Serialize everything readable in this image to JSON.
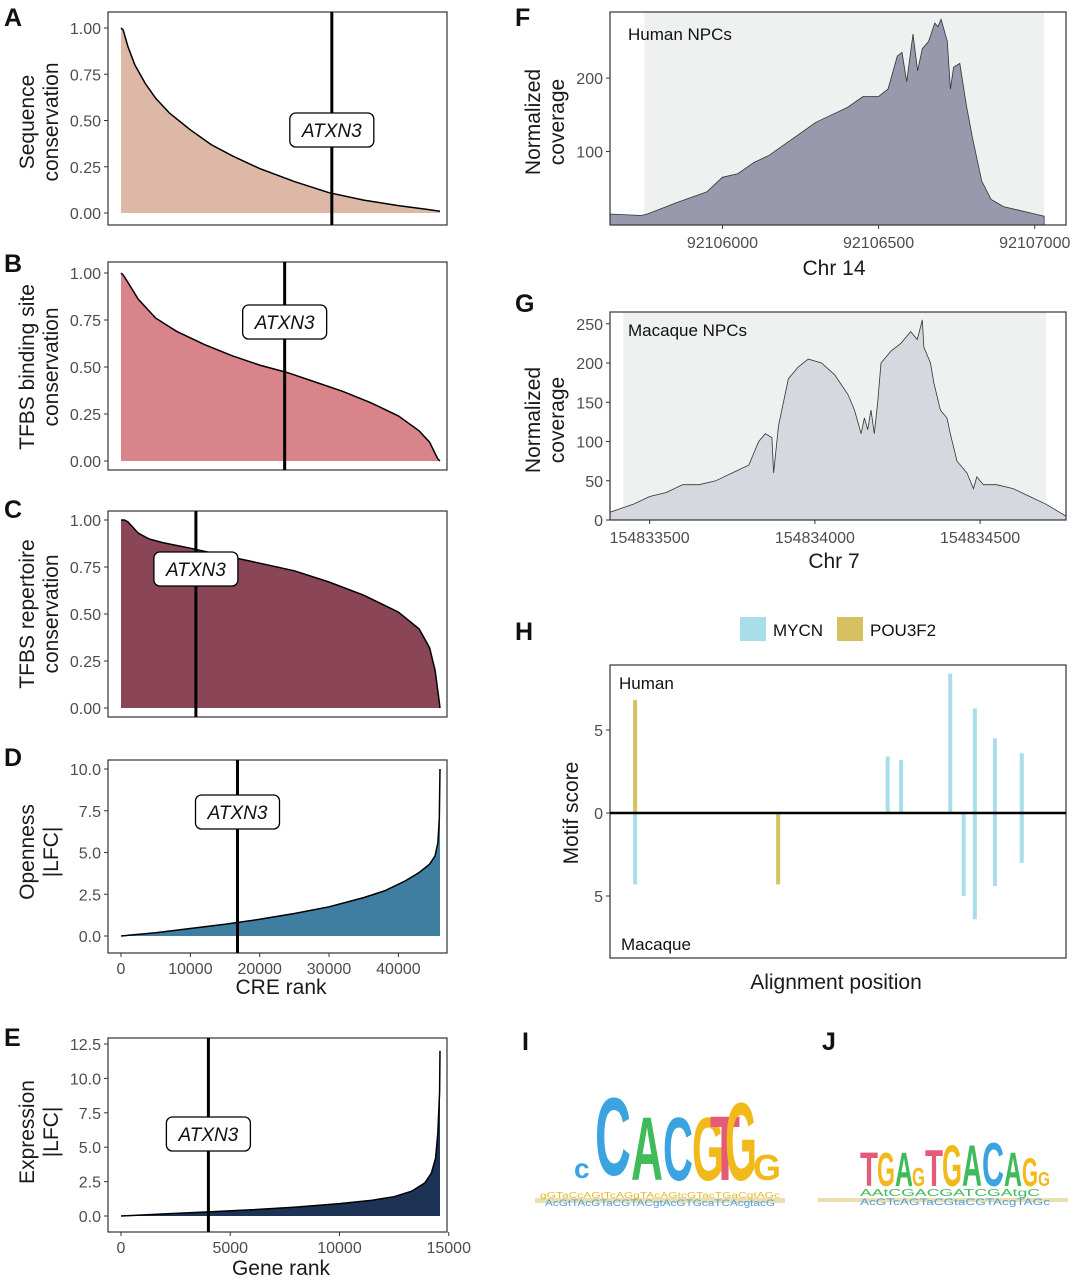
{
  "panels": {
    "A": {
      "letter": "A",
      "ylabel": [
        "Sequence",
        "conservation"
      ],
      "yticks": [
        "0.00",
        "0.25",
        "0.50",
        "0.75",
        "1.00"
      ],
      "annotation": "ATXN3",
      "fill": "#deb8a6",
      "chart_type": "area",
      "ylim": [
        0,
        1
      ],
      "xlim": [
        0,
        46000
      ],
      "marker_x": 30400,
      "curve_x": [
        0,
        300,
        1000,
        2000,
        3500,
        5000,
        7000,
        10000,
        13000,
        16000,
        20000,
        25000,
        30000,
        35000,
        40000,
        44000,
        45500,
        46000
      ],
      "curve_y": [
        1.0,
        0.99,
        0.9,
        0.8,
        0.7,
        0.62,
        0.54,
        0.45,
        0.37,
        0.31,
        0.24,
        0.17,
        0.11,
        0.07,
        0.04,
        0.02,
        0.012,
        0.01
      ]
    },
    "B": {
      "letter": "B",
      "ylabel": [
        "TFBS binding site",
        "conservation"
      ],
      "yticks": [
        "0.00",
        "0.25",
        "0.50",
        "0.75",
        "1.00"
      ],
      "annotation": "ATXN3",
      "fill": "#d9838b",
      "chart_type": "area",
      "ylim": [
        0,
        1
      ],
      "xlim": [
        0,
        46000
      ],
      "marker_x": 23600,
      "curve_x": [
        0,
        300,
        1000,
        2500,
        5000,
        8000,
        12000,
        16000,
        20000,
        24000,
        28000,
        32000,
        36000,
        40000,
        43000,
        44500,
        45300,
        45700,
        46000
      ],
      "curve_y": [
        1.0,
        0.99,
        0.95,
        0.86,
        0.76,
        0.69,
        0.62,
        0.56,
        0.51,
        0.47,
        0.42,
        0.37,
        0.31,
        0.24,
        0.16,
        0.1,
        0.04,
        0.01,
        0.0
      ]
    },
    "C": {
      "letter": "C",
      "ylabel": [
        "TFBS repertoire",
        "conservation"
      ],
      "yticks": [
        "0.00",
        "0.25",
        "0.50",
        "0.75",
        "1.00"
      ],
      "annotation": "ATXN3",
      "fill": "#8a4656",
      "chart_type": "area",
      "ylim": [
        0,
        1
      ],
      "xlim": [
        0,
        46000
      ],
      "marker_x": 10800,
      "curve_x": [
        0,
        500,
        1000,
        1500,
        2500,
        4000,
        6000,
        10000,
        15000,
        20000,
        25000,
        30000,
        35000,
        40000,
        43000,
        44500,
        45300,
        45800,
        46000
      ],
      "curve_y": [
        1.0,
        1.0,
        0.99,
        0.97,
        0.93,
        0.9,
        0.88,
        0.85,
        0.81,
        0.77,
        0.73,
        0.67,
        0.6,
        0.51,
        0.42,
        0.32,
        0.2,
        0.06,
        0.0
      ]
    },
    "D": {
      "letter": "D",
      "ylabel": [
        "Openness",
        "|LFC|"
      ],
      "yticks": [
        "0.0",
        "2.5",
        "5.0",
        "7.5",
        "10.0"
      ],
      "xticks": [
        "0",
        "10000",
        "20000",
        "30000",
        "40000"
      ],
      "xlabel": "CRE rank",
      "annotation": "ATXN3",
      "fill": "#3f7ea1",
      "chart_type": "area",
      "ylim": [
        0,
        10
      ],
      "xlim": [
        0,
        46000
      ],
      "marker_x": 16800,
      "curve_x": [
        0,
        5000,
        10000,
        15000,
        20000,
        25000,
        30000,
        35000,
        38000,
        41000,
        43000,
        44500,
        45300,
        45700,
        45900,
        46000
      ],
      "curve_y": [
        0.0,
        0.2,
        0.45,
        0.7,
        1.0,
        1.35,
        1.75,
        2.3,
        2.7,
        3.3,
        3.8,
        4.3,
        4.8,
        5.6,
        7.0,
        10.0
      ]
    },
    "E": {
      "letter": "E",
      "ylabel": [
        "Expression",
        "|LFC|"
      ],
      "yticks": [
        "0.0",
        "2.5",
        "5.0",
        "7.5",
        "10.0",
        "12.5"
      ],
      "xticks": [
        "0",
        "5000",
        "10000",
        "15000"
      ],
      "xlabel": "Gene rank",
      "annotation": "ATXN3",
      "fill": "#1d3355",
      "chart_type": "area",
      "ylim": [
        0,
        12.5
      ],
      "xlim": [
        0,
        14600
      ],
      "marker_x": 4000,
      "curve_x": [
        0,
        2000,
        4000,
        6000,
        8000,
        10000,
        11500,
        12500,
        13300,
        13900,
        14200,
        14400,
        14500,
        14580,
        14600
      ],
      "curve_y": [
        0.0,
        0.15,
        0.3,
        0.45,
        0.65,
        0.9,
        1.15,
        1.4,
        1.8,
        2.4,
        3.1,
        4.2,
        6.0,
        9.0,
        12.0
      ]
    },
    "F": {
      "letter": "F",
      "ylabel": [
        "Normalized",
        "coverage"
      ],
      "yticks": [
        "100",
        "200"
      ],
      "xticks": [
        "92106000",
        "92106500",
        "92107000"
      ],
      "xlabel": "Chr 14",
      "inner_label": "Human NPCs",
      "fill": "#9899ad",
      "chart_type": "area",
      "xlim": [
        92105640,
        92107100
      ],
      "ylim": [
        0,
        290
      ],
      "shade_range": [
        92105750,
        92107030
      ],
      "x": [
        92105640,
        92105740,
        92105760,
        92105850,
        92105950,
        92106000,
        92106050,
        92106100,
        92106150,
        92106200,
        92106250,
        92106300,
        92106350,
        92106400,
        92106450,
        92106500,
        92106530,
        92106560,
        92106575,
        92106590,
        92106610,
        92106625,
        92106640,
        92106660,
        92106680,
        92106690,
        92106700,
        92106710,
        92106720,
        92106730,
        92106740,
        92106760,
        92106780,
        92106800,
        92106830,
        92106860,
        92106900,
        92106950,
        92107000,
        92107030
      ],
      "y": [
        15,
        13,
        15,
        30,
        45,
        65,
        70,
        85,
        95,
        110,
        125,
        140,
        150,
        160,
        175,
        175,
        185,
        230,
        235,
        195,
        260,
        210,
        240,
        250,
        275,
        270,
        280,
        265,
        250,
        185,
        215,
        220,
        165,
        120,
        60,
        35,
        25,
        20,
        15,
        12
      ]
    },
    "G": {
      "letter": "G",
      "ylabel": [
        "Normalized",
        "coverage"
      ],
      "yticks": [
        "0",
        "50",
        "100",
        "150",
        "200",
        "250"
      ],
      "xticks": [
        "154833500",
        "154834000",
        "154834500"
      ],
      "xlabel": "Chr 7",
      "inner_label": "Macaque NPCs",
      "fill": "#d6d8e0",
      "chart_type": "area",
      "xlim": [
        154833380,
        154834760
      ],
      "ylim": [
        0,
        265
      ],
      "shade_range": [
        154833420,
        154834700
      ],
      "x": [
        154833380,
        154833450,
        154833500,
        154833550,
        154833600,
        154833650,
        154833700,
        154833750,
        154833800,
        154833830,
        154833850,
        154833870,
        154833875,
        154833890,
        154833900,
        154833920,
        154833950,
        154833980,
        154834020,
        154834060,
        154834100,
        154834120,
        154834140,
        154834150,
        154834160,
        154834170,
        154834180,
        154834190,
        154834200,
        154834230,
        154834260,
        154834290,
        154834310,
        154834325,
        154834330,
        154834350,
        154834360,
        154834380,
        154834400,
        154834410,
        154834430,
        154834460,
        154834480,
        154834490,
        154834510,
        154834550,
        154834600,
        154834650,
        154834700,
        154834740,
        154834760
      ],
      "y": [
        10,
        20,
        30,
        35,
        45,
        45,
        50,
        60,
        70,
        100,
        110,
        105,
        60,
        120,
        140,
        180,
        195,
        205,
        200,
        185,
        160,
        140,
        110,
        130,
        115,
        140,
        110,
        150,
        200,
        215,
        225,
        240,
        230,
        255,
        220,
        200,
        175,
        140,
        130,
        110,
        75,
        60,
        40,
        55,
        45,
        45,
        40,
        30,
        20,
        10,
        5
      ]
    },
    "H": {
      "letter": "H",
      "ylabel": "Motif score",
      "yticks": [
        "5",
        "0",
        "5"
      ],
      "xlabel": "Alignment position",
      "top_label": "Human",
      "bottom_label": "Macaque",
      "legend": [
        {
          "name": "MYCN",
          "color": "#a8dde9"
        },
        {
          "name": "POU3F2",
          "color": "#d6c060"
        }
      ],
      "chart_type": "bar",
      "ylim": [
        -7.5,
        8.5
      ],
      "xlim": [
        0,
        100
      ],
      "bars": [
        {
          "x": 4.5,
          "v": 6.8,
          "c": 1
        },
        {
          "x": 4.5,
          "v": -4.3,
          "c": 0
        },
        {
          "x": 36.5,
          "v": -4.3,
          "c": 1
        },
        {
          "x": 61,
          "v": 3.4,
          "c": 0
        },
        {
          "x": 64,
          "v": 3.2,
          "c": 0
        },
        {
          "x": 75,
          "v": 8.4,
          "c": 0
        },
        {
          "x": 78,
          "v": -5.0,
          "c": 0
        },
        {
          "x": 80.5,
          "v": 6.3,
          "c": 0
        },
        {
          "x": 80.5,
          "v": -6.4,
          "c": 0
        },
        {
          "x": 85,
          "v": 4.5,
          "c": 0
        },
        {
          "x": 85,
          "v": -4.4,
          "c": 0
        },
        {
          "x": 91,
          "v": 3.6,
          "c": 0
        },
        {
          "x": 91,
          "v": -3.0,
          "c": 0
        }
      ]
    },
    "I": {
      "letter": "I"
    },
    "J": {
      "letter": "J"
    }
  },
  "chart_data": [
    {
      "type": "area",
      "panel": "A",
      "ylabel": "Sequence conservation",
      "ylim": [
        0,
        1
      ],
      "annotation": "ATXN3",
      "x": [
        0,
        300,
        1000,
        2000,
        3500,
        5000,
        7000,
        10000,
        13000,
        16000,
        20000,
        25000,
        30000,
        35000,
        40000,
        44000,
        45500,
        46000
      ],
      "y": [
        1.0,
        0.99,
        0.9,
        0.8,
        0.7,
        0.62,
        0.54,
        0.45,
        0.37,
        0.31,
        0.24,
        0.17,
        0.11,
        0.07,
        0.04,
        0.02,
        0.012,
        0.01
      ],
      "marker_x": 30400
    },
    {
      "type": "area",
      "panel": "B",
      "ylabel": "TFBS binding site conservation",
      "ylim": [
        0,
        1
      ],
      "annotation": "ATXN3",
      "x": [
        0,
        300,
        1000,
        2500,
        5000,
        8000,
        12000,
        16000,
        20000,
        24000,
        28000,
        32000,
        36000,
        40000,
        43000,
        44500,
        45300,
        45700,
        46000
      ],
      "y": [
        1.0,
        0.99,
        0.95,
        0.86,
        0.76,
        0.69,
        0.62,
        0.56,
        0.51,
        0.47,
        0.42,
        0.37,
        0.31,
        0.24,
        0.16,
        0.1,
        0.04,
        0.01,
        0.0
      ],
      "marker_x": 23600
    },
    {
      "type": "area",
      "panel": "C",
      "ylabel": "TFBS repertoire conservation",
      "ylim": [
        0,
        1
      ],
      "annotation": "ATXN3",
      "x": [
        0,
        500,
        1000,
        1500,
        2500,
        4000,
        6000,
        10000,
        15000,
        20000,
        25000,
        30000,
        35000,
        40000,
        43000,
        44500,
        45300,
        45800,
        46000
      ],
      "y": [
        1.0,
        1.0,
        0.99,
        0.97,
        0.93,
        0.9,
        0.88,
        0.85,
        0.81,
        0.77,
        0.73,
        0.67,
        0.6,
        0.51,
        0.42,
        0.32,
        0.2,
        0.06,
        0.0
      ],
      "marker_x": 10800
    },
    {
      "type": "area",
      "panel": "D",
      "xlabel": "CRE rank",
      "ylabel": "Openness |LFC|",
      "ylim": [
        0,
        10
      ],
      "annotation": "ATXN3",
      "x": [
        0,
        5000,
        10000,
        15000,
        20000,
        25000,
        30000,
        35000,
        38000,
        41000,
        43000,
        44500,
        45300,
        45700,
        45900,
        46000
      ],
      "y": [
        0.0,
        0.2,
        0.45,
        0.7,
        1.0,
        1.35,
        1.75,
        2.3,
        2.7,
        3.3,
        3.8,
        4.3,
        4.8,
        5.6,
        7.0,
        10.0
      ],
      "marker_x": 16800
    },
    {
      "type": "area",
      "panel": "E",
      "xlabel": "Gene rank",
      "ylabel": "Expression |LFC|",
      "ylim": [
        0,
        12.5
      ],
      "annotation": "ATXN3",
      "x": [
        0,
        2000,
        4000,
        6000,
        8000,
        10000,
        11500,
        12500,
        13300,
        13900,
        14200,
        14400,
        14500,
        14580,
        14600
      ],
      "y": [
        0.0,
        0.15,
        0.3,
        0.45,
        0.65,
        0.9,
        1.15,
        1.4,
        1.8,
        2.4,
        3.1,
        4.2,
        6.0,
        9.0,
        12.0
      ],
      "marker_x": 4000
    },
    {
      "type": "area",
      "panel": "F",
      "xlabel": "Chr 14",
      "ylabel": "Normalized coverage",
      "label": "Human NPCs"
    },
    {
      "type": "area",
      "panel": "G",
      "xlabel": "Chr 7",
      "ylabel": "Normalized coverage",
      "label": "Macaque NPCs"
    },
    {
      "type": "bar",
      "panel": "H",
      "xlabel": "Alignment position",
      "ylabel": "Motif score",
      "series": [
        {
          "name": "MYCN"
        },
        {
          "name": "POU3F2"
        }
      ]
    }
  ]
}
